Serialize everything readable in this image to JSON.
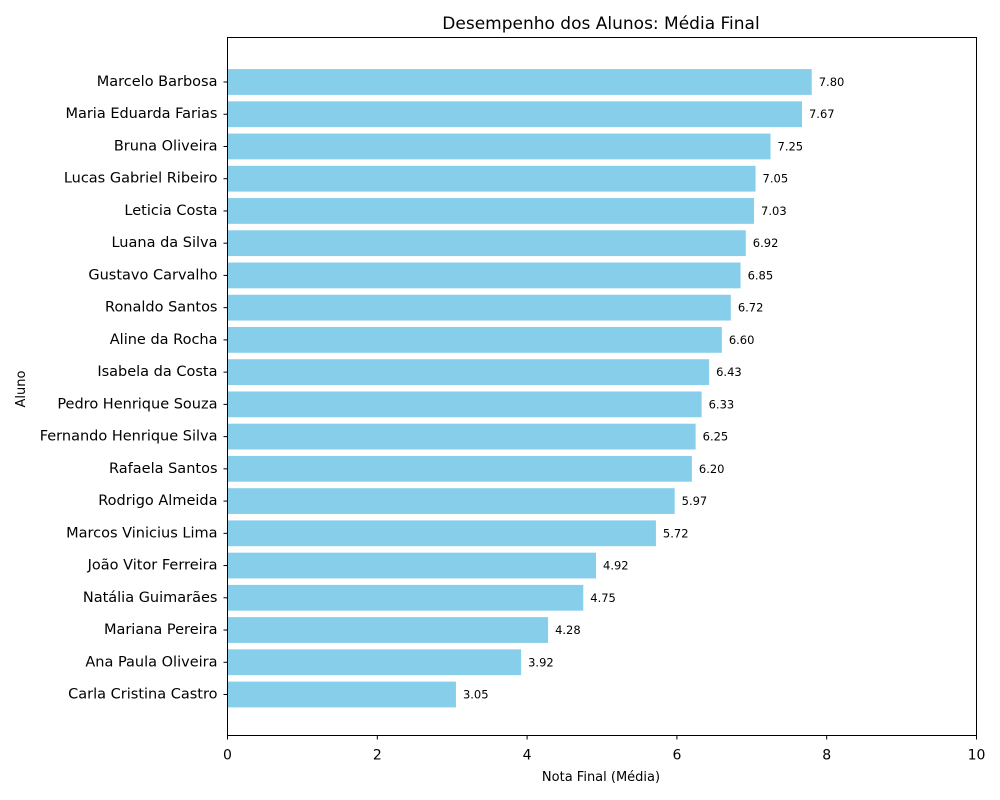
{
  "chart_data": {
    "type": "bar",
    "orientation": "horizontal",
    "title": "Desempenho dos Alunos: Média Final",
    "xlabel": "Nota Final (Média)",
    "ylabel": "Aluno",
    "xlim": [
      0,
      10
    ],
    "xticks": [
      "0",
      "2",
      "4",
      "6",
      "8",
      "10"
    ],
    "grid": false,
    "bar_color": "#87CEEB",
    "categories": [
      "Marcelo Barbosa",
      "Maria Eduarda Farias",
      "Bruna Oliveira",
      "Lucas Gabriel Ribeiro",
      "Leticia Costa",
      "Luana da Silva",
      "Gustavo Carvalho",
      "Ronaldo Santos",
      "Aline da Rocha",
      "Isabela da Costa",
      "Pedro Henrique Souza",
      "Fernando Henrique Silva",
      "Rafaela Santos",
      "Rodrigo Almeida",
      "Marcos Vinicius Lima",
      "João Vitor Ferreira",
      "Natália Guimarães",
      "Mariana Pereira",
      "Ana Paula Oliveira",
      "Carla Cristina Castro"
    ],
    "values": [
      7.8,
      7.67,
      7.25,
      7.05,
      7.03,
      6.92,
      6.85,
      6.72,
      6.6,
      6.43,
      6.33,
      6.25,
      6.2,
      5.97,
      5.72,
      4.92,
      4.75,
      4.28,
      3.92,
      3.05
    ],
    "value_labels": [
      "7.80",
      "7.67",
      "7.25",
      "7.05",
      "7.03",
      "6.92",
      "6.85",
      "6.72",
      "6.60",
      "6.43",
      "6.33",
      "6.25",
      "6.20",
      "5.97",
      "5.72",
      "4.92",
      "4.75",
      "4.28",
      "3.92",
      "3.05"
    ]
  }
}
